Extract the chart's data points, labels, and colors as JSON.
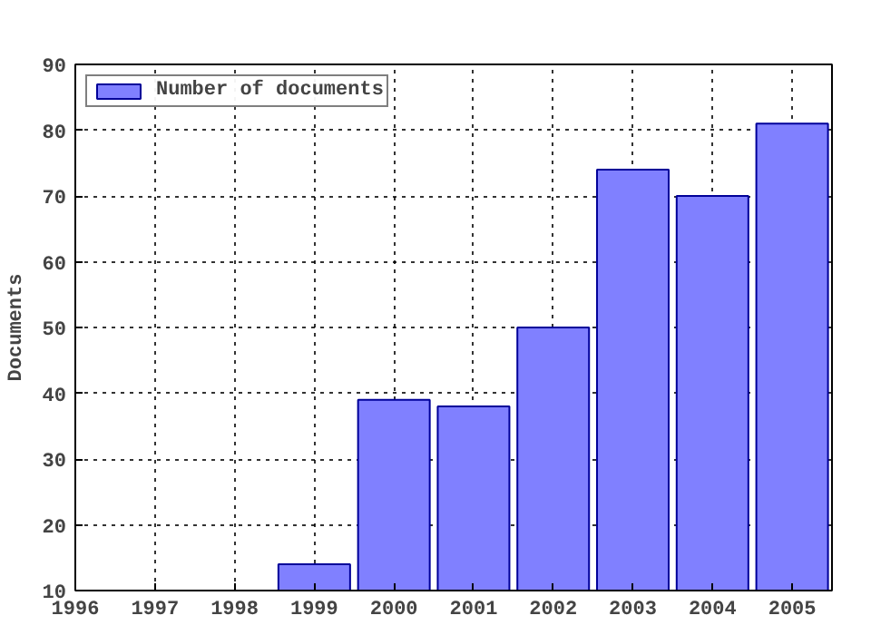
{
  "chart_data": {
    "type": "bar",
    "ylabel": "Documents",
    "x": [
      1999,
      2000,
      2001,
      2002,
      2003,
      2004,
      2005
    ],
    "series": [
      {
        "name": "Number of documents",
        "color": "#8080ff",
        "values": [
          14,
          39,
          38,
          50,
          74,
          70,
          81
        ]
      }
    ],
    "xlim": [
      1996,
      2005.5
    ],
    "xticks": [
      1996,
      1997,
      1998,
      1999,
      2000,
      2001,
      2002,
      2003,
      2004,
      2005
    ],
    "ylim": [
      10,
      90
    ],
    "yticks": [
      10,
      20,
      30,
      40,
      50,
      60,
      70,
      80,
      90
    ],
    "grid": true,
    "legend": "top left"
  }
}
